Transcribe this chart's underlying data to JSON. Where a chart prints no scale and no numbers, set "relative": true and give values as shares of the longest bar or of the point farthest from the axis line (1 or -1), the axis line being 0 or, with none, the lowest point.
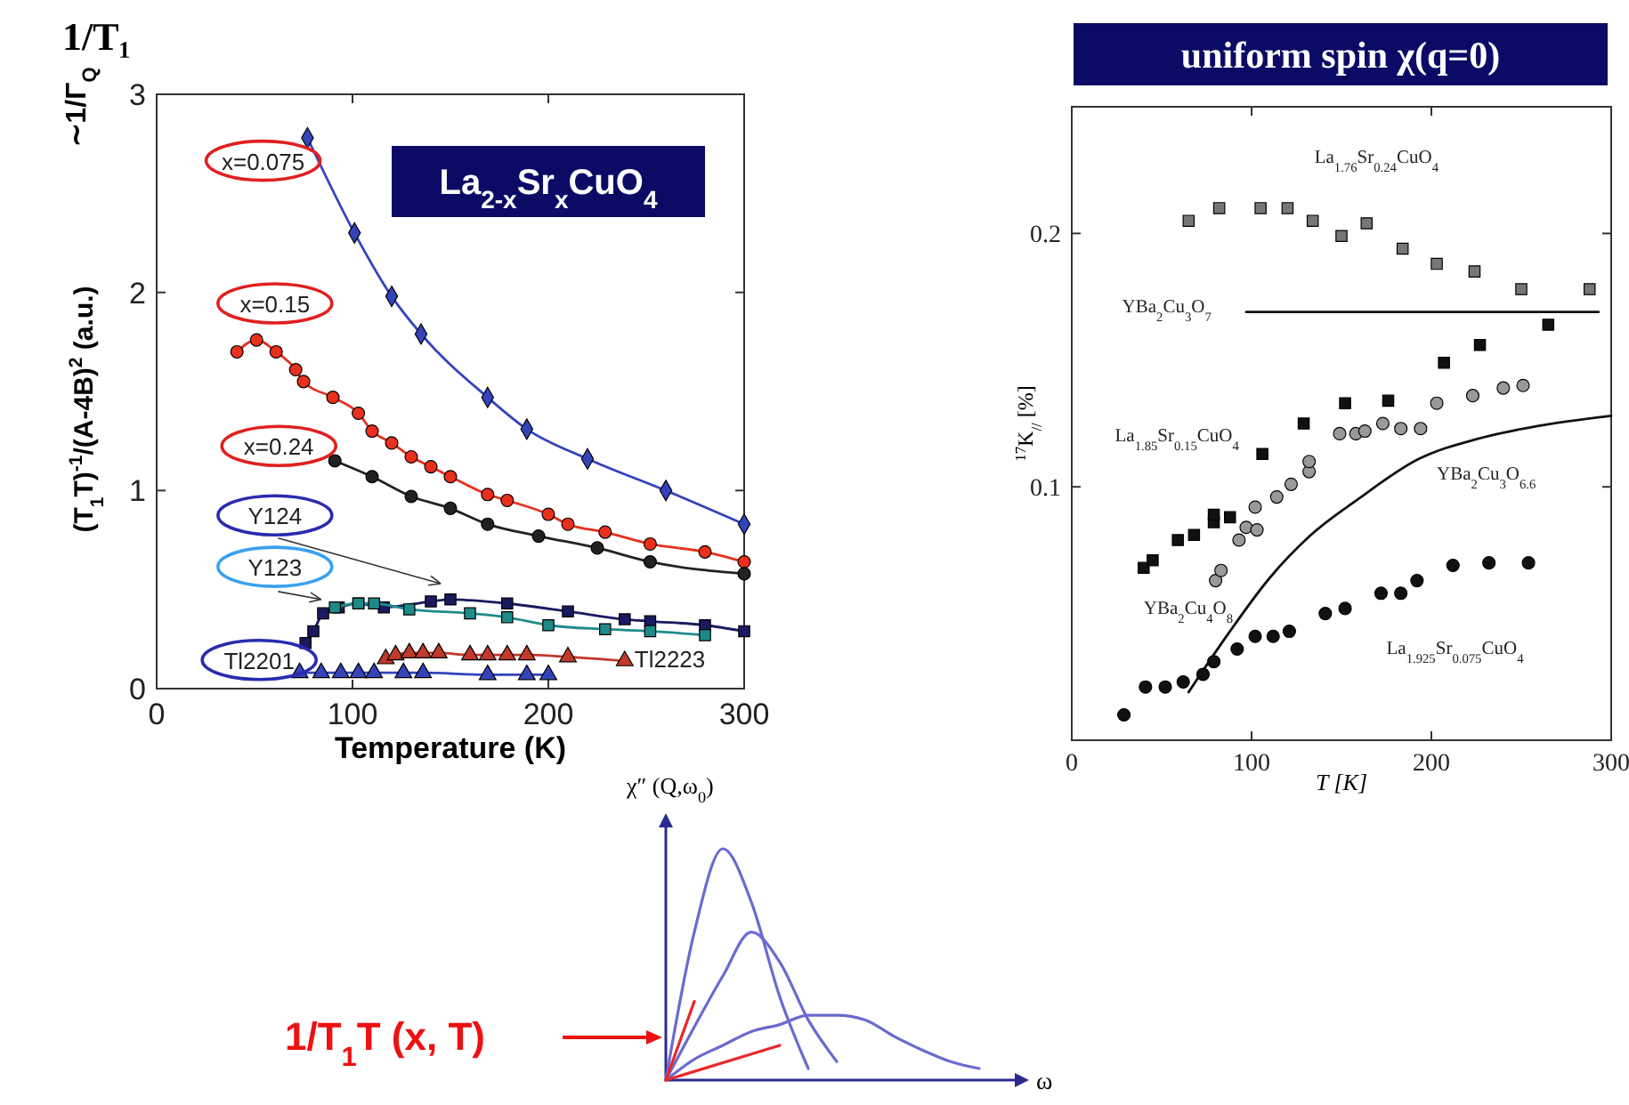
{
  "chart_data": [
    {
      "type": "line",
      "title": "1/T₁",
      "subtitle": "La$_{2-x}$Sr$_{x}$CuO$_{4}$",
      "xlabel": "Temperature (K)",
      "ylabel": "(T$_{1}$T)$^{-1}$/(A-4B)$^{2}$ (a.u.)",
      "annotations": [
        "∼1/Γ$_{Q}$"
      ],
      "xlim": [
        0,
        300
      ],
      "ylim": [
        0,
        3
      ],
      "xticks": [
        0,
        100,
        200,
        300
      ],
      "yticks": [
        0,
        1,
        2,
        3
      ],
      "series": [
        {
          "name": "x=0.075",
          "color": "#3344bb",
          "marker": "diamond",
          "x": [
            77,
            101,
            120,
            135,
            169,
            189,
            220,
            260,
            300
          ],
          "values": [
            2.78,
            2.3,
            1.98,
            1.79,
            1.47,
            1.31,
            1.16,
            1.0,
            0.83
          ]
        },
        {
          "name": "x=0.15",
          "color": "#e8301c",
          "marker": "circle",
          "x": [
            41,
            51,
            61,
            71,
            75,
            90,
            103,
            110,
            120,
            130,
            140,
            150,
            169,
            179,
            200,
            210,
            229,
            252,
            280,
            300
          ],
          "values": [
            1.7,
            1.76,
            1.7,
            1.61,
            1.55,
            1.47,
            1.39,
            1.3,
            1.24,
            1.17,
            1.12,
            1.07,
            0.98,
            0.95,
            0.88,
            0.83,
            0.79,
            0.73,
            0.69,
            0.64
          ]
        },
        {
          "name": "x=0.24",
          "color": "#222222",
          "marker": "circle",
          "x": [
            91,
            110,
            130,
            150,
            169,
            195,
            225,
            252,
            300
          ],
          "values": [
            1.15,
            1.07,
            0.97,
            0.91,
            0.83,
            0.77,
            0.71,
            0.64,
            0.58
          ]
        },
        {
          "name": "Y124",
          "color": "#1a1a60",
          "marker": "square",
          "x": [
            76,
            80,
            85,
            93,
            103,
            116,
            140,
            150,
            179,
            210,
            239,
            252,
            280,
            300
          ],
          "values": [
            0.23,
            0.29,
            0.38,
            0.41,
            0.43,
            0.41,
            0.44,
            0.45,
            0.43,
            0.39,
            0.35,
            0.34,
            0.32,
            0.29
          ]
        },
        {
          "name": "Y123",
          "color": "#1f8a8a",
          "marker": "square",
          "x": [
            91,
            103,
            111,
            129,
            160,
            179,
            200,
            229,
            252,
            280
          ],
          "values": [
            0.41,
            0.43,
            0.43,
            0.4,
            0.38,
            0.36,
            0.32,
            0.3,
            0.29,
            0.27
          ]
        },
        {
          "name": "Tl2223",
          "color": "#c0392b",
          "marker": "triangle",
          "x": [
            117,
            122,
            129,
            136,
            144,
            160,
            169,
            179,
            189,
            210,
            239
          ],
          "values": [
            0.15,
            0.17,
            0.18,
            0.18,
            0.18,
            0.17,
            0.17,
            0.17,
            0.17,
            0.16,
            0.14
          ]
        },
        {
          "name": "Tl2201",
          "color": "#3344bb",
          "marker": "triangle",
          "x": [
            73,
            84,
            94,
            103,
            111,
            126,
            136,
            169,
            189,
            200
          ],
          "values": [
            0.08,
            0.08,
            0.08,
            0.08,
            0.08,
            0.08,
            0.08,
            0.07,
            0.07,
            0.07
          ]
        }
      ]
    },
    {
      "type": "scatter",
      "title": "uniform spin χ(q=0)",
      "xlabel": "T [K]",
      "ylabel": "$^{17}$K$_{//}$ [%]",
      "xlim": [
        0,
        300
      ],
      "ylim": [
        0,
        0.25
      ],
      "xticks": [
        0,
        100,
        200,
        300
      ],
      "yticks": [
        0.1,
        0.2
      ],
      "series": [
        {
          "name": "La$_{1.76}$Sr$_{0.24}$CuO$_{4}$",
          "color": "#777777",
          "marker": "square",
          "x": [
            65,
            82,
            105,
            120,
            134,
            150,
            164,
            184,
            203,
            224,
            250,
            288
          ],
          "values": [
            0.205,
            0.21,
            0.21,
            0.21,
            0.205,
            0.199,
            0.204,
            0.194,
            0.188,
            0.185,
            0.178,
            0.178
          ]
        },
        {
          "name": "YBa$_{2}$Cu$_{3}$O$_{7}$",
          "type": "line",
          "color": "#111111",
          "marker": "none",
          "x": [
            97,
            293
          ],
          "values": [
            0.169,
            0.169
          ]
        },
        {
          "name": "La$_{1.85}$Sr$_{0.15}$CuO$_{4}$",
          "color": "#111111",
          "marker": "square",
          "x": [
            40,
            45,
            59,
            68,
            79,
            79,
            88,
            106,
            129,
            152,
            176,
            207,
            227,
            265
          ],
          "values": [
            0.068,
            0.071,
            0.079,
            0.081,
            0.086,
            0.089,
            0.088,
            0.113,
            0.125,
            0.133,
            0.134,
            0.149,
            0.156,
            0.164
          ]
        },
        {
          "name": "YBa$_{2}$Cu$_{4}$O$_{8}$",
          "color": "#999999",
          "marker": "circle",
          "x": [
            80,
            83,
            93,
            97,
            102,
            103,
            114,
            122,
            132,
            132,
            149,
            158,
            163,
            173,
            183,
            194,
            203,
            223,
            240,
            251
          ],
          "values": [
            0.063,
            0.067,
            0.079,
            0.084,
            0.092,
            0.083,
            0.096,
            0.101,
            0.106,
            0.11,
            0.121,
            0.121,
            0.122,
            0.125,
            0.123,
            0.123,
            0.133,
            0.136,
            0.139,
            0.14
          ]
        },
        {
          "name": "YBa$_{2}$Cu$_{3}$O$_{6.6}$",
          "type": "line",
          "color": "#111111",
          "marker": "none",
          "x": [
            65,
            87,
            110,
            133,
            159,
            193,
            226,
            259,
            300
          ],
          "values": [
            0.019,
            0.042,
            0.064,
            0.081,
            0.095,
            0.111,
            0.119,
            0.124,
            0.128
          ]
        },
        {
          "name": "La$_{1.925}$Sr$_{0.075}$CuO$_{4}$",
          "color": "#111111",
          "marker": "circle",
          "x": [
            29,
            41,
            52,
            62,
            73,
            79,
            92,
            102,
            112,
            121,
            141,
            152,
            172,
            183,
            192,
            212,
            232,
            254
          ],
          "values": [
            0.01,
            0.021,
            0.021,
            0.023,
            0.026,
            0.031,
            0.036,
            0.041,
            0.041,
            0.043,
            0.05,
            0.052,
            0.058,
            0.058,
            0.063,
            0.069,
            0.07,
            0.07
          ]
        }
      ]
    },
    {
      "type": "line",
      "relative": true,
      "xlabel": "ω",
      "ylabel": "χ″ (Q,ω$_{0}$)",
      "annotations": [
        "1/T$_{1}$T (x, T)"
      ],
      "categories": [
        null,
        null,
        null,
        null,
        null,
        null,
        null,
        null,
        null,
        null,
        null,
        null,
        null
      ],
      "series": [
        {
          "color": "#6a6ad0",
          "values": [
            0,
            0.64,
            1.0,
            0.77,
            0.36,
            0.05,
            null,
            null,
            null,
            null,
            null,
            null,
            null
          ]
        },
        {
          "color": "#6a6ad0",
          "values": [
            0,
            0.23,
            0.45,
            0.64,
            0.51,
            0.26,
            0.08,
            null,
            null,
            null,
            null,
            null,
            null
          ]
        },
        {
          "color": "#6a6ad0",
          "values": [
            0,
            0.09,
            0.15,
            0.21,
            0.24,
            0.28,
            0.28,
            0.26,
            0.19,
            0.13,
            0.08,
            0.05,
            null
          ]
        },
        {
          "color": "#e8282a",
          "values": [
            0,
            0.34,
            null,
            null,
            null,
            null,
            null,
            null,
            null,
            null,
            null,
            null,
            null
          ]
        },
        {
          "color": "#e8282a",
          "values": [
            0,
            null,
            null,
            null,
            0.15,
            null,
            null,
            null,
            null,
            null,
            null,
            null,
            null
          ]
        }
      ]
    }
  ]
}
